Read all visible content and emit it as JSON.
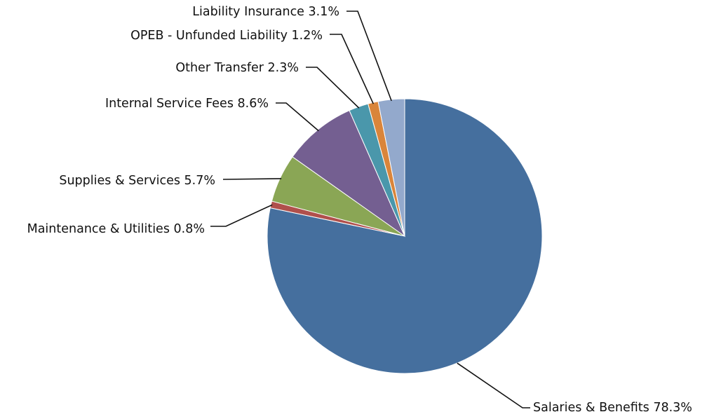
{
  "chart_data": {
    "type": "pie",
    "categories": [
      "Salaries & Benefits",
      "Maintenance & Utilities",
      "Supplies & Services",
      "Internal Service Fees",
      "Other Transfer",
      "OPEB - Unfunded Liability",
      "Liability Insurance"
    ],
    "values": [
      78.3,
      0.8,
      5.7,
      8.6,
      2.3,
      1.2,
      3.1
    ],
    "value_labels": [
      "78.3%",
      "0.8%",
      "5.7%",
      "8.6%",
      "2.3%",
      "1.2%",
      "3.1%"
    ],
    "colors": [
      "#456f9e",
      "#b0504c",
      "#8aa655",
      "#745f91",
      "#4a97ab",
      "#d9853b",
      "#93a9cc"
    ]
  }
}
